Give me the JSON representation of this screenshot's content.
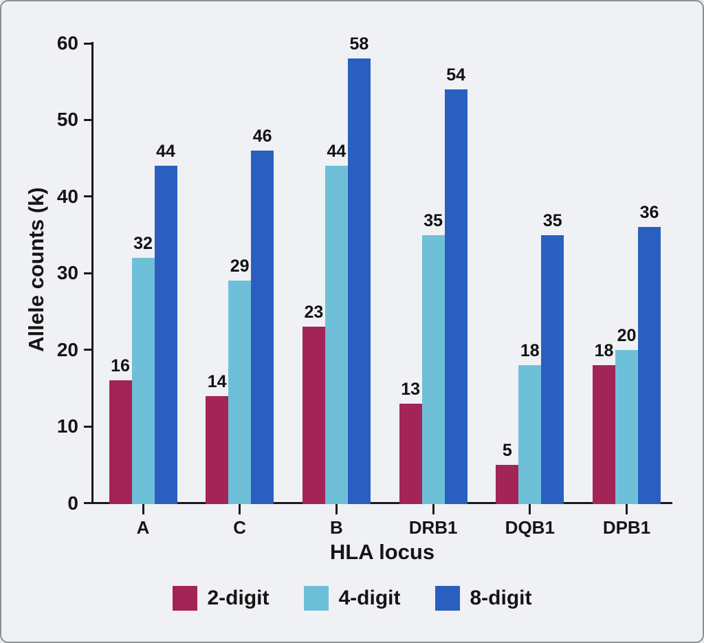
{
  "chart_data": {
    "type": "bar",
    "categories": [
      "A",
      "C",
      "B",
      "DRB1",
      "DQB1",
      "DPB1"
    ],
    "series": [
      {
        "name": "2-digit",
        "color": "#a32456",
        "values": [
          16,
          14,
          23,
          13,
          5,
          18
        ]
      },
      {
        "name": "4-digit",
        "color": "#6ec0d8",
        "values": [
          32,
          29,
          44,
          35,
          18,
          20
        ]
      },
      {
        "name": "8-digit",
        "color": "#2a5fc0",
        "values": [
          44,
          46,
          58,
          54,
          35,
          36
        ]
      }
    ],
    "title": "",
    "xlabel": "HLA locus",
    "ylabel": "Allele counts (k)",
    "ylim": [
      0,
      60
    ],
    "yticks": [
      0,
      10,
      20,
      30,
      40,
      50,
      60
    ],
    "grid": false,
    "legend_position": "bottom",
    "value_labels": true
  },
  "colors": {
    "background": "#f0f1f4",
    "frame_border": "#8e9094",
    "axis": "#1a1a1a",
    "text": "#151515"
  }
}
